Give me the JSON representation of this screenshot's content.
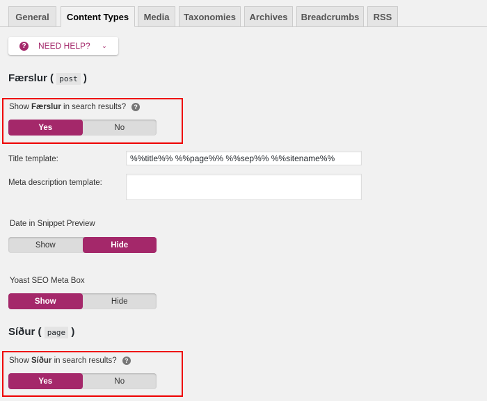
{
  "tabs": [
    {
      "label": "General"
    },
    {
      "label": "Content Types",
      "active": true
    },
    {
      "label": "Media"
    },
    {
      "label": "Taxonomies"
    },
    {
      "label": "Archives"
    },
    {
      "label": "Breadcrumbs"
    },
    {
      "label": "RSS"
    }
  ],
  "help": {
    "label": "NEED HELP?",
    "icon": "question-circle-icon"
  },
  "posts": {
    "heading": "Færslur",
    "slug": "post",
    "show_prefix": "Show",
    "show_name": "Færslur",
    "show_suffix": "in search results?",
    "yes": "Yes",
    "no": "No",
    "selected": "Yes",
    "title_label": "Title template:",
    "title_value": "%%title%% %%page%% %%sep%% %%sitename%%",
    "meta_label": "Meta description template:",
    "meta_value": "",
    "date_label": "Date in Snippet Preview",
    "date_show": "Show",
    "date_hide": "Hide",
    "date_selected": "Hide",
    "metabox_label": "Yoast SEO Meta Box",
    "metabox_show": "Show",
    "metabox_hide": "Hide",
    "metabox_selected": "Show"
  },
  "pages": {
    "heading": "Síður",
    "slug": "page",
    "show_prefix": "Show",
    "show_name": "Síður",
    "show_suffix": "in search results?",
    "yes": "Yes",
    "no": "No",
    "selected": "Yes"
  },
  "colors": {
    "accent": "#a4286a",
    "highlight": "#e00000"
  }
}
